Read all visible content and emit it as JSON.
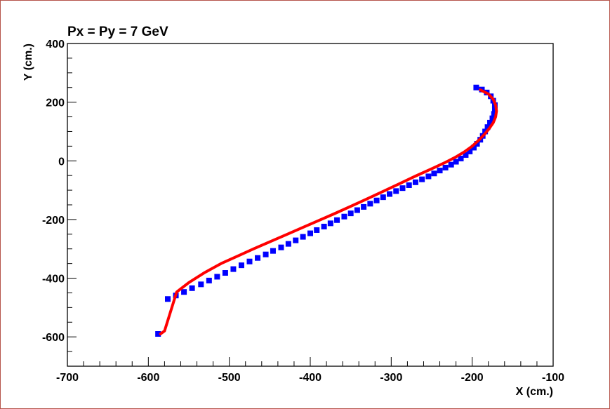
{
  "chart_data": {
    "type": "scatter",
    "title": "Px = Py = 7 GeV",
    "xlabel": "X (cm.)",
    "ylabel": "Y (cm.)",
    "xlim": [
      -700,
      -100
    ],
    "ylim": [
      -700,
      400
    ],
    "x_ticks": [
      -700,
      -600,
      -500,
      -400,
      -300,
      -200,
      -100
    ],
    "y_ticks": [
      -600,
      -400,
      -200,
      0,
      200,
      400
    ],
    "grid": false,
    "series": [
      {
        "kind": "points",
        "color": "#0000ff",
        "marker": "square",
        "points": [
          [
            -195,
            250
          ],
          [
            -188,
            243
          ],
          [
            -182,
            233
          ],
          [
            -177,
            220
          ],
          [
            -174,
            205
          ],
          [
            -172,
            190
          ],
          [
            -172,
            175
          ],
          [
            -173,
            160
          ],
          [
            -175,
            145
          ],
          [
            -178,
            130
          ],
          [
            -181,
            115
          ],
          [
            -184,
            100
          ],
          [
            -187,
            85
          ],
          [
            -190,
            72
          ],
          [
            -194,
            58
          ],
          [
            -198,
            45
          ],
          [
            -203,
            32
          ],
          [
            -208,
            20
          ],
          [
            -214,
            8
          ],
          [
            -220,
            -3
          ],
          [
            -226,
            -13
          ],
          [
            -233,
            -23
          ],
          [
            -240,
            -33
          ],
          [
            -247,
            -43
          ],
          [
            -254,
            -53
          ],
          [
            -262,
            -63
          ],
          [
            -270,
            -73
          ],
          [
            -278,
            -83
          ],
          [
            -286,
            -93
          ],
          [
            -294,
            -103
          ],
          [
            -302,
            -113
          ],
          [
            -310,
            -124
          ],
          [
            -318,
            -135
          ],
          [
            -326,
            -146
          ],
          [
            -334,
            -157
          ],
          [
            -342,
            -168
          ],
          [
            -350,
            -179
          ],
          [
            -358,
            -190
          ],
          [
            -367,
            -202
          ],
          [
            -375,
            -213
          ],
          [
            -383,
            -224
          ],
          [
            -392,
            -236
          ],
          [
            -400,
            -247
          ],
          [
            -409,
            -259
          ],
          [
            -418,
            -271
          ],
          [
            -427,
            -283
          ],
          [
            -436,
            -295
          ],
          [
            -446,
            -307
          ],
          [
            -455,
            -319
          ],
          [
            -465,
            -331
          ],
          [
            -475,
            -343
          ],
          [
            -485,
            -356
          ],
          [
            -495,
            -369
          ],
          [
            -505,
            -382
          ],
          [
            -515,
            -395
          ],
          [
            -525,
            -408
          ],
          [
            -535,
            -421
          ],
          [
            -546,
            -434
          ],
          [
            -556,
            -447
          ],
          [
            -566,
            -459
          ],
          [
            -576,
            -471
          ],
          [
            -588,
            -590
          ]
        ]
      },
      {
        "kind": "line",
        "color": "#ff0000",
        "points": [
          [
            -190,
            242
          ],
          [
            -180,
            228
          ],
          [
            -174,
            210
          ],
          [
            -171,
            190
          ],
          [
            -170,
            170
          ],
          [
            -171,
            150
          ],
          [
            -174,
            130
          ],
          [
            -179,
            110
          ],
          [
            -185,
            90
          ],
          [
            -192,
            70
          ],
          [
            -200,
            50
          ],
          [
            -210,
            30
          ],
          [
            -221,
            12
          ],
          [
            -233,
            -5
          ],
          [
            -250,
            -27
          ],
          [
            -270,
            -52
          ],
          [
            -290,
            -78
          ],
          [
            -310,
            -104
          ],
          [
            -330,
            -130
          ],
          [
            -350,
            -155
          ],
          [
            -370,
            -180
          ],
          [
            -390,
            -204
          ],
          [
            -410,
            -228
          ],
          [
            -430,
            -252
          ],
          [
            -450,
            -276
          ],
          [
            -470,
            -300
          ],
          [
            -490,
            -325
          ],
          [
            -510,
            -350
          ],
          [
            -530,
            -380
          ],
          [
            -550,
            -415
          ],
          [
            -565,
            -447
          ],
          [
            -580,
            -580
          ],
          [
            -585,
            -590
          ]
        ]
      }
    ]
  }
}
